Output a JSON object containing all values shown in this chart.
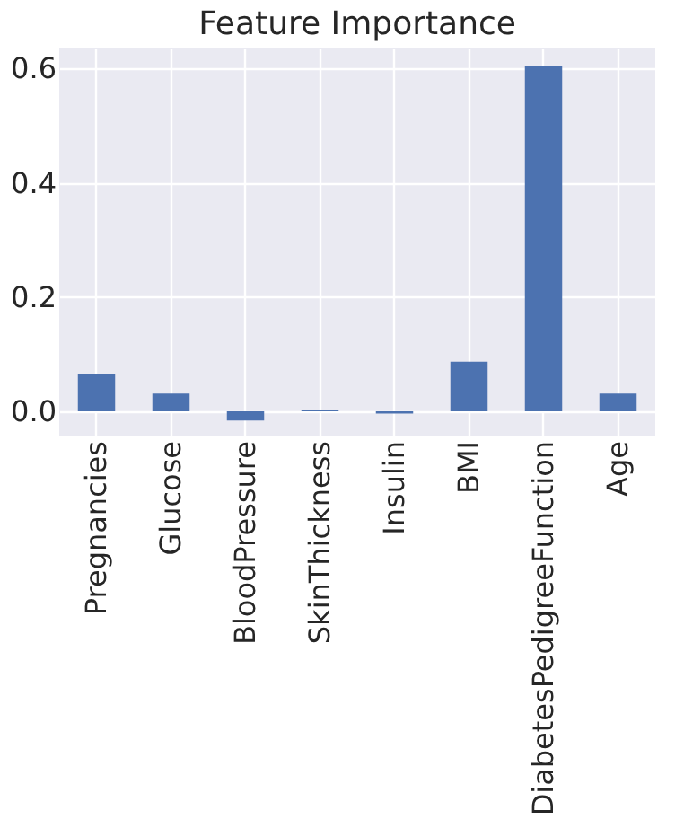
{
  "chart_data": {
    "type": "bar",
    "title": "Feature Importance",
    "categories": [
      "Pregnancies",
      "Glucose",
      "BloodPressure",
      "SkinThickness",
      "Insulin",
      "BMI",
      "DiabetesPedigreeFunction",
      "Age"
    ],
    "values": [
      0.065,
      0.031,
      -0.016,
      0.003,
      -0.004,
      0.087,
      0.605,
      0.031
    ],
    "color": "#4c72b0",
    "ylim": [
      -0.044,
      0.635
    ],
    "yticks": [
      {
        "value": 0,
        "label": "0.0"
      },
      {
        "value": 0.2,
        "label": "0.2"
      },
      {
        "value": 0.4,
        "label": "0.4"
      },
      {
        "value": 0.6,
        "label": "0.6"
      }
    ],
    "grid": true
  }
}
